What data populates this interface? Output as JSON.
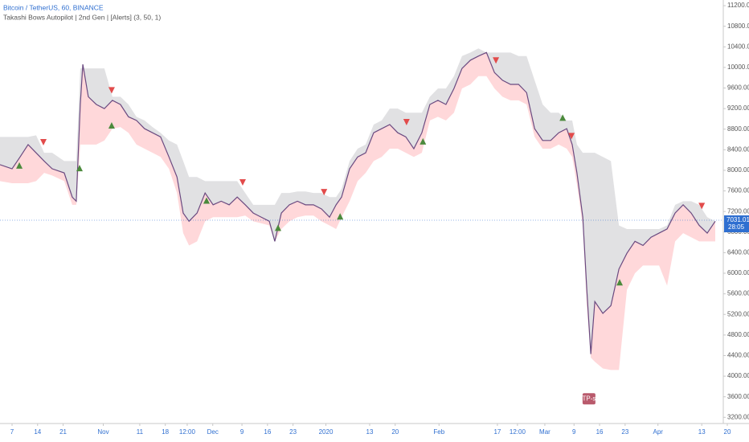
{
  "chart_data": {
    "type": "line",
    "title": "Bitcoin / TetherUS, 60, BINANCE",
    "subtitle": "Takashi Bows Autopilot | 2nd Gen | [Alerts] (3, 50, 1)",
    "x": [
      2.7,
      6,
      8.2,
      10.4,
      12.6,
      14.8,
      17.0,
      20.3,
      22.5,
      23.6,
      24.7,
      25.4,
      26.9,
      29.1,
      31.3,
      33.5,
      35.7,
      37.9,
      40.1,
      42.3,
      44.5,
      46.7,
      49.0,
      51.2,
      52.9,
      54.5,
      56.7,
      58.9,
      61.1,
      63.3,
      65.5,
      67.7,
      69.9,
      72.1,
      74.3,
      76.5,
      78.0,
      79.8,
      82.0,
      84.2,
      86.4,
      88.6,
      90.8,
      93.0,
      94.8,
      96.3,
      98.5,
      100.7,
      102.9,
      105.1,
      107.3,
      109.5,
      111.7,
      113.9,
      116.1,
      118.3,
      120.5,
      122.7,
      124.9,
      127.1,
      129.3,
      131.6,
      133.8,
      136.0,
      138.2,
      140.4,
      142.6,
      144.8,
      147.0,
      149.2,
      151.4,
      153.6,
      155.8,
      158.0,
      159.5,
      160.8,
      162.4,
      163.5,
      164.6,
      165.7,
      167.9,
      170.1,
      172.3,
      174.5,
      176.7,
      178.9,
      181.1,
      183.3,
      185.5,
      187.7,
      189.9,
      192.1,
      194.3,
      196.5,
      198.7
    ],
    "series": [
      {
        "style": "upper-band",
        "color": "#e1e1e3",
        "values": [
          8650,
          8650,
          8650,
          8650,
          8680,
          8340,
          8340,
          8180,
          8180,
          8180,
          9980,
          9980,
          9980,
          9980,
          9980,
          9430,
          9430,
          9280,
          9040,
          8970,
          8840,
          8730,
          8580,
          8500,
          8180,
          7870,
          7870,
          7790,
          7790,
          7790,
          7790,
          7790,
          7560,
          7330,
          7330,
          7330,
          7330,
          7560,
          7560,
          7590,
          7590,
          7560,
          7560,
          7480,
          7480,
          7640,
          8180,
          8420,
          8500,
          8890,
          8970,
          9200,
          9200,
          9120,
          9120,
          9120,
          9430,
          9590,
          9590,
          9830,
          10220,
          10290,
          10370,
          10290,
          10290,
          10290,
          10290,
          10220,
          10220,
          9750,
          9280,
          9120,
          9120,
          8970,
          8970,
          8500,
          8340,
          8340,
          8340,
          8340,
          8260,
          8180,
          6930,
          6860,
          6860,
          6860,
          6860,
          6860,
          6930,
          7330,
          7400,
          7400,
          7330,
          7090,
          7010
        ]
      },
      {
        "style": "lower-band",
        "color": "#ffd8da",
        "values": [
          7790,
          7750,
          7750,
          7750,
          7790,
          7950,
          7900,
          7790,
          7330,
          7330,
          8500,
          8500,
          8500,
          8500,
          8580,
          8810,
          8840,
          8730,
          8500,
          8420,
          8340,
          8260,
          8030,
          7560,
          6780,
          6540,
          6620,
          7010,
          7090,
          7090,
          7090,
          7090,
          7120,
          7010,
          6970,
          6930,
          6620,
          6860,
          7010,
          7090,
          7120,
          7120,
          7010,
          6930,
          6860,
          7090,
          7400,
          7790,
          7950,
          8180,
          8260,
          8420,
          8420,
          8340,
          8260,
          8340,
          8970,
          9040,
          8970,
          9120,
          9590,
          9670,
          9830,
          9830,
          9590,
          9430,
          9360,
          9360,
          9280,
          8650,
          8420,
          8420,
          8500,
          8420,
          8260,
          7720,
          6930,
          5370,
          4360,
          4280,
          4150,
          4120,
          4120,
          5680,
          6000,
          6150,
          6150,
          6150,
          5760,
          6620,
          6780,
          6700,
          6620,
          6620,
          6620
        ]
      },
      {
        "style": "price",
        "color": "#6a4a80",
        "values": [
          8110,
          8030,
          8260,
          8500,
          8340,
          8180,
          8030,
          7950,
          7480,
          7400,
          9280,
          10060,
          9430,
          9280,
          9200,
          9360,
          9280,
          9040,
          8970,
          8810,
          8730,
          8650,
          8260,
          7870,
          7170,
          7010,
          7170,
          7560,
          7330,
          7400,
          7330,
          7480,
          7330,
          7170,
          7090,
          7010,
          6620,
          7170,
          7330,
          7400,
          7330,
          7330,
          7250,
          7090,
          7330,
          7480,
          8030,
          8260,
          8340,
          8730,
          8810,
          8890,
          8730,
          8650,
          8420,
          8730,
          9280,
          9360,
          9280,
          9590,
          9980,
          10140,
          10220,
          10290,
          9900,
          9750,
          9670,
          9670,
          9510,
          8810,
          8580,
          8580,
          8730,
          8810,
          8500,
          7950,
          7090,
          5680,
          4430,
          5450,
          5220,
          5370,
          6080,
          6390,
          6620,
          6540,
          6700,
          6780,
          6860,
          7170,
          7330,
          7170,
          6930,
          6780,
          7010
        ]
      }
    ],
    "markers": [
      {
        "x": 14.6,
        "y": 8530,
        "shape": "down",
        "color": "#e24b4b"
      },
      {
        "x": 33.3,
        "y": 9540,
        "shape": "down",
        "color": "#e24b4b"
      },
      {
        "x": 69.2,
        "y": 7750,
        "shape": "down",
        "color": "#e24b4b"
      },
      {
        "x": 91.5,
        "y": 7560,
        "shape": "down",
        "color": "#e24b4b"
      },
      {
        "x": 114.1,
        "y": 8920,
        "shape": "down",
        "color": "#e24b4b"
      },
      {
        "x": 138.6,
        "y": 10120,
        "shape": "down",
        "color": "#e24b4b"
      },
      {
        "x": 159.3,
        "y": 8650,
        "shape": "down",
        "color": "#e24b4b"
      },
      {
        "x": 195.0,
        "y": 7290,
        "shape": "down",
        "color": "#e24b4b"
      },
      {
        "x": 8.0,
        "y": 8110,
        "shape": "up",
        "color": "#4b8a3c"
      },
      {
        "x": 24.5,
        "y": 8060,
        "shape": "up",
        "color": "#4b8a3c"
      },
      {
        "x": 33.3,
        "y": 8890,
        "shape": "up",
        "color": "#4b8a3c"
      },
      {
        "x": 59.3,
        "y": 7430,
        "shape": "up",
        "color": "#4b8a3c"
      },
      {
        "x": 78.9,
        "y": 6900,
        "shape": "up",
        "color": "#4b8a3c"
      },
      {
        "x": 95.9,
        "y": 7120,
        "shape": "up",
        "color": "#4b8a3c"
      },
      {
        "x": 118.6,
        "y": 8580,
        "shape": "up",
        "color": "#4b8a3c"
      },
      {
        "x": 156.9,
        "y": 9040,
        "shape": "up",
        "color": "#4b8a3c"
      },
      {
        "x": 172.5,
        "y": 5840,
        "shape": "up",
        "color": "#4b8a3c"
      }
    ],
    "annotation": {
      "text": "TP-s",
      "x": 164.1,
      "y": 3560,
      "color": "#b95a6c"
    },
    "last_price": {
      "value": 7031.01,
      "label": "7031.01",
      "color": "#2f6fd0"
    },
    "countdown": "28:05",
    "xlim": [
      2.7,
      200.9
    ],
    "ylim": [
      3080,
      11310
    ],
    "xticks": [
      {
        "value": 6,
        "label": "7"
      },
      {
        "value": 13,
        "label": "14"
      },
      {
        "value": 20,
        "label": "21"
      },
      {
        "value": 31,
        "label": "Nov"
      },
      {
        "value": 41,
        "label": "11"
      },
      {
        "value": 48,
        "label": "18"
      },
      {
        "value": 54,
        "label": "12:00"
      },
      {
        "value": 61,
        "label": "Dec"
      },
      {
        "value": 69,
        "label": "9"
      },
      {
        "value": 76,
        "label": "16"
      },
      {
        "value": 83,
        "label": "23"
      },
      {
        "value": 92,
        "label": "2020"
      },
      {
        "value": 104,
        "label": "13"
      },
      {
        "value": 111,
        "label": "20"
      },
      {
        "value": 123,
        "label": "Feb"
      },
      {
        "value": 139,
        "label": "17"
      },
      {
        "value": 144.5,
        "label": "12:00"
      },
      {
        "value": 152,
        "label": "Mar"
      },
      {
        "value": 160,
        "label": "9"
      },
      {
        "value": 167,
        "label": "16"
      },
      {
        "value": 174,
        "label": "23"
      },
      {
        "value": 183,
        "label": "Apr"
      },
      {
        "value": 195,
        "label": "13"
      },
      {
        "value": 202,
        "label": "20"
      }
    ],
    "yticks": [
      {
        "value": 3200,
        "label": "3200.00"
      },
      {
        "value": 3600,
        "label": "3600.00"
      },
      {
        "value": 4000,
        "label": "4000.00"
      },
      {
        "value": 4400,
        "label": "4400.00"
      },
      {
        "value": 4800,
        "label": "4800.00"
      },
      {
        "value": 5200,
        "label": "5200.00"
      },
      {
        "value": 5600,
        "label": "5600.00"
      },
      {
        "value": 6000,
        "label": "6000.00"
      },
      {
        "value": 6400,
        "label": "6400.00"
      },
      {
        "value": 6800,
        "label": "6800.00"
      },
      {
        "value": 7200,
        "label": "7200.00"
      },
      {
        "value": 7600,
        "label": "7600.00"
      },
      {
        "value": 8000,
        "label": "8000.00"
      },
      {
        "value": 8400,
        "label": "8400.00"
      },
      {
        "value": 8800,
        "label": "8800.00"
      },
      {
        "value": 9200,
        "label": "9200.00"
      },
      {
        "value": 9600,
        "label": "9600.00"
      },
      {
        "value": 10000,
        "label": "10000.00"
      },
      {
        "value": 10400,
        "label": "10400.00"
      },
      {
        "value": 10800,
        "label": "10800.00"
      },
      {
        "value": 11200,
        "label": "11200.00"
      }
    ],
    "grid": false
  }
}
